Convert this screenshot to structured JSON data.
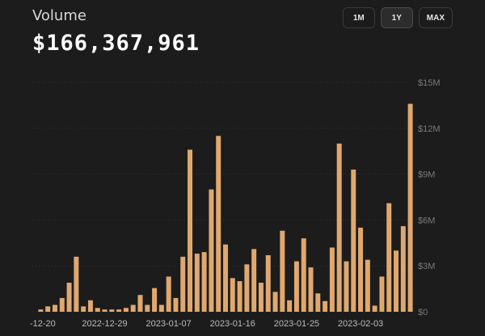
{
  "header": {
    "title": "Volume",
    "total": "$166,367,961"
  },
  "range_buttons": [
    {
      "label": "1M",
      "active": false
    },
    {
      "label": "1Y",
      "active": true
    },
    {
      "label": "MAX",
      "active": false
    }
  ],
  "colors": {
    "bar": "#e0a86e",
    "grid": "#333333",
    "background": "#1c1c1c"
  },
  "chart_data": {
    "type": "bar",
    "ylim": [
      0,
      15000000
    ],
    "y_ticks": [
      0,
      3000000,
      6000000,
      9000000,
      12000000,
      15000000
    ],
    "y_tick_labels": [
      "$0",
      "$3M",
      "$6M",
      "$9M",
      "$12M",
      "$15M"
    ],
    "y_axis_side": "right",
    "grid": true,
    "x_tick_labels": [
      {
        "label": "-12-20",
        "index": 0
      },
      {
        "label": "2022-12-29",
        "index": 9
      },
      {
        "label": "2023-01-07",
        "index": 18
      },
      {
        "label": "2023-01-16",
        "index": 27
      },
      {
        "label": "2023-01-25",
        "index": 36
      },
      {
        "label": "2023-02-03",
        "index": 45
      }
    ],
    "values": [
      150000,
      350000,
      450000,
      900000,
      1900000,
      3600000,
      350000,
      750000,
      250000,
      150000,
      150000,
      150000,
      250000,
      450000,
      1100000,
      450000,
      1550000,
      450000,
      2300000,
      900000,
      3600000,
      10600000,
      3800000,
      3900000,
      8000000,
      11500000,
      4400000,
      2200000,
      2000000,
      3100000,
      4100000,
      1900000,
      3700000,
      1300000,
      5300000,
      750000,
      3300000,
      4800000,
      2900000,
      1200000,
      700000,
      4200000,
      11000000,
      3300000,
      9300000,
      5500000,
      3400000,
      400000,
      2300000,
      7100000,
      4000000,
      5600000,
      13600000
    ]
  }
}
